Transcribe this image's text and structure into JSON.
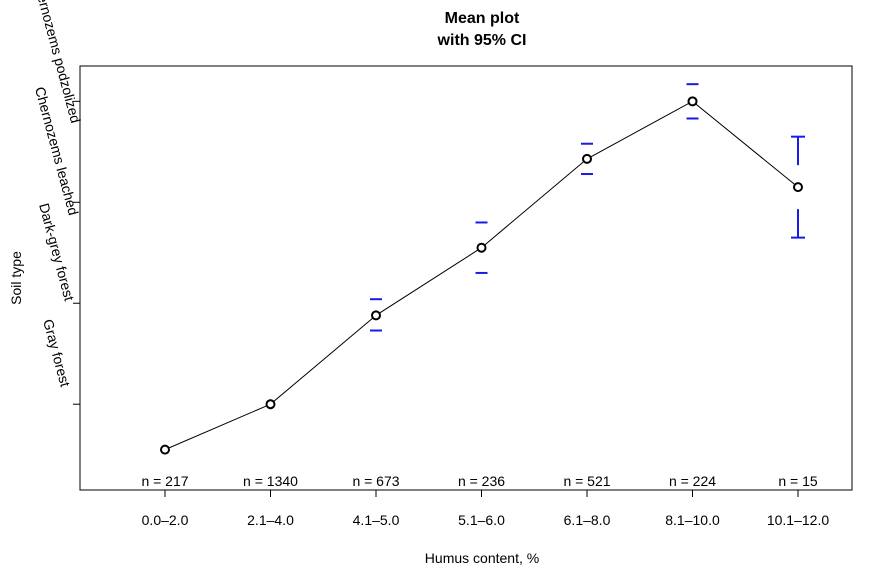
{
  "chart_data": {
    "type": "line",
    "title": [
      "Mean plot",
      "with 95% CI"
    ],
    "xlabel": "Humus content, %",
    "ylabel": "Soil type",
    "categories": [
      "0.0–2.0",
      "2.1–4.0",
      "4.1–5.0",
      "5.1–6.0",
      "6.1–8.0",
      "8.1–10.0",
      "10.1–12.0"
    ],
    "n_labels": [
      "n = 217",
      "n = 1340",
      "n = 673",
      "n = 236",
      "n = 521",
      "n = 224",
      "n = 15"
    ],
    "y_tick_labels": [
      "Gray forest",
      "Dark-grey forest",
      "Chernozems leached",
      "Chernozems podzolized"
    ],
    "y_tick_values": [
      1,
      2,
      3,
      4
    ],
    "ylim": [
      0.15,
      4.35
    ],
    "series": [
      {
        "means": [
          0.55,
          1.0,
          1.88,
          2.55,
          3.43,
          4.0,
          3.15
        ],
        "ci_lower": [
          0.52,
          0.96,
          1.73,
          2.3,
          3.28,
          3.83,
          2.65
        ],
        "ci_upper": [
          0.58,
          1.04,
          2.04,
          2.8,
          3.58,
          4.17,
          3.65
        ]
      }
    ],
    "grid": false,
    "colors": {
      "line": "#000000",
      "ci": "#1a1ae6"
    }
  }
}
